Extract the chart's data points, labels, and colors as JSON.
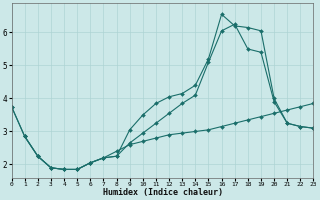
{
  "xlabel": "Humidex (Indice chaleur)",
  "ylabel": "",
  "bg_color": "#cce8e8",
  "line_color": "#1a6e6a",
  "grid_color": "#aed4d4",
  "xlim": [
    0,
    23
  ],
  "ylim": [
    1.6,
    6.9
  ],
  "yticks": [
    2,
    3,
    4,
    5,
    6
  ],
  "xticks": [
    0,
    1,
    2,
    3,
    4,
    5,
    6,
    7,
    8,
    9,
    10,
    11,
    12,
    13,
    14,
    15,
    16,
    17,
    18,
    19,
    20,
    21,
    22,
    23
  ],
  "line1_x": [
    0,
    1,
    2,
    3,
    4,
    5,
    6,
    7,
    8,
    9,
    10,
    11,
    12,
    13,
    14,
    15,
    16,
    17,
    18,
    19,
    20,
    21,
    22,
    23
  ],
  "line1_y": [
    3.75,
    2.85,
    2.25,
    1.9,
    1.85,
    1.85,
    2.05,
    2.2,
    2.25,
    3.05,
    3.5,
    3.85,
    4.05,
    4.15,
    4.4,
    5.2,
    6.55,
    6.2,
    6.15,
    6.05,
    4.0,
    3.25,
    3.15,
    3.1
  ],
  "line2_x": [
    0,
    1,
    2,
    3,
    4,
    5,
    6,
    7,
    8,
    9,
    10,
    11,
    12,
    13,
    14,
    15,
    16,
    17,
    18,
    19,
    20,
    21,
    22,
    23
  ],
  "line2_y": [
    3.75,
    2.85,
    2.25,
    1.9,
    1.85,
    1.85,
    2.05,
    2.2,
    2.25,
    2.65,
    2.95,
    3.25,
    3.55,
    3.85,
    4.1,
    5.1,
    6.05,
    6.25,
    5.5,
    5.4,
    3.9,
    3.25,
    3.15,
    3.1
  ],
  "line3_x": [
    1,
    2,
    3,
    4,
    5,
    6,
    7,
    8,
    9,
    10,
    11,
    12,
    13,
    14,
    15,
    16,
    17,
    18,
    19,
    20,
    21,
    22,
    23
  ],
  "line3_y": [
    2.85,
    2.25,
    1.9,
    1.85,
    1.85,
    2.05,
    2.2,
    2.4,
    2.6,
    2.7,
    2.8,
    2.9,
    2.95,
    3.0,
    3.05,
    3.15,
    3.25,
    3.35,
    3.45,
    3.55,
    3.65,
    3.75,
    3.85
  ],
  "marker": "D",
  "markersize": 2.0,
  "linewidth": 0.8
}
